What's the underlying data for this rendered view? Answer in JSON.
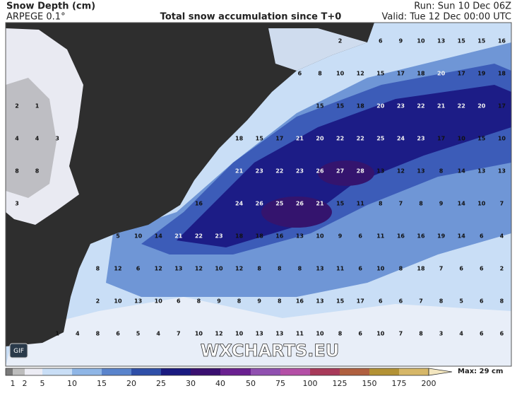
{
  "header": {
    "title": "Snow Depth (cm)",
    "model": "ARPEGE 0.1°",
    "subtitle": "Total snow accumulation since T+0",
    "run": "Run: Sun 10 Dec 06Z",
    "valid": "Valid: Tue 12 Dec 00:00 UTC"
  },
  "map": {
    "grid": [
      [
        null,
        null,
        null,
        null,
        null,
        null,
        null,
        null,
        null,
        null,
        null,
        null,
        null,
        null,
        null,
        null,
        2,
        null,
        6,
        9,
        10,
        13,
        15,
        15,
        16
      ],
      [
        null,
        null,
        null,
        null,
        null,
        null,
        null,
        null,
        null,
        null,
        null,
        null,
        null,
        null,
        6,
        8,
        10,
        12,
        15,
        17,
        18,
        20,
        17,
        19,
        18
      ],
      [
        2,
        1,
        null,
        null,
        null,
        null,
        null,
        null,
        null,
        null,
        null,
        null,
        null,
        null,
        null,
        15,
        15,
        18,
        20,
        23,
        22,
        21,
        22,
        20,
        17
      ],
      [
        4,
        4,
        3,
        null,
        null,
        null,
        null,
        null,
        null,
        null,
        null,
        18,
        15,
        17,
        21,
        20,
        22,
        22,
        25,
        24,
        23,
        17,
        10,
        15,
        10
      ],
      [
        8,
        8,
        null,
        null,
        null,
        null,
        null,
        null,
        null,
        null,
        null,
        21,
        23,
        22,
        23,
        26,
        27,
        28,
        13,
        12,
        13,
        8,
        14,
        13,
        13
      ],
      [
        3,
        null,
        null,
        null,
        null,
        null,
        null,
        null,
        null,
        16,
        null,
        24,
        26,
        25,
        26,
        21,
        15,
        11,
        8,
        7,
        8,
        9,
        14,
        10,
        7
      ],
      [
        null,
        null,
        null,
        null,
        null,
        5,
        10,
        14,
        21,
        22,
        23,
        18,
        18,
        16,
        13,
        10,
        9,
        6,
        11,
        16,
        16,
        19,
        14,
        6,
        4
      ],
      [
        null,
        null,
        null,
        null,
        8,
        12,
        6,
        12,
        13,
        12,
        10,
        12,
        8,
        8,
        8,
        13,
        11,
        6,
        10,
        8,
        18,
        7,
        6,
        6,
        2
      ],
      [
        null,
        null,
        null,
        null,
        2,
        10,
        13,
        10,
        6,
        8,
        9,
        8,
        9,
        8,
        16,
        13,
        15,
        17,
        6,
        6,
        7,
        8,
        5,
        6,
        8
      ],
      [
        null,
        null,
        1,
        4,
        8,
        6,
        5,
        4,
        7,
        10,
        12,
        10,
        13,
        13,
        11,
        10,
        8,
        6,
        10,
        7,
        8,
        3,
        4,
        6,
        6
      ]
    ],
    "watermark": "WXCHARTS.EU",
    "gif_button": "GIF"
  },
  "colorbar": {
    "levels": [
      1,
      2,
      5,
      10,
      15,
      20,
      25,
      30,
      40,
      50,
      75,
      100,
      125,
      150,
      175,
      200
    ],
    "max_label": "Max: 29 cm"
  }
}
